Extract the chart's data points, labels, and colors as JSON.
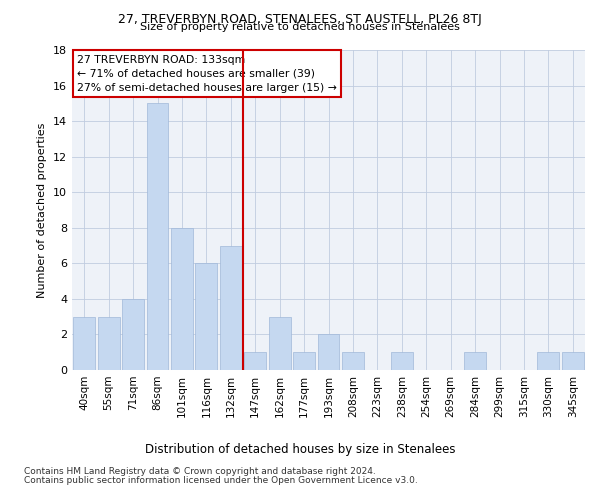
{
  "title": "27, TREVERBYN ROAD, STENALEES, ST AUSTELL, PL26 8TJ",
  "subtitle": "Size of property relative to detached houses in Stenalees",
  "xlabel": "Distribution of detached houses by size in Stenalees",
  "ylabel": "Number of detached properties",
  "categories": [
    "40sqm",
    "55sqm",
    "71sqm",
    "86sqm",
    "101sqm",
    "116sqm",
    "132sqm",
    "147sqm",
    "162sqm",
    "177sqm",
    "193sqm",
    "208sqm",
    "223sqm",
    "238sqm",
    "254sqm",
    "269sqm",
    "284sqm",
    "299sqm",
    "315sqm",
    "330sqm",
    "345sqm"
  ],
  "values": [
    3,
    3,
    4,
    15,
    8,
    6,
    7,
    1,
    3,
    1,
    2,
    1,
    0,
    1,
    0,
    0,
    1,
    0,
    0,
    1,
    1
  ],
  "bar_color": "#c5d8f0",
  "bar_edgecolor": "#a0b8d8",
  "vline_x": 6.5,
  "vline_color": "#cc0000",
  "annotation_text": "27 TREVERBYN ROAD: 133sqm\n← 71% of detached houses are smaller (39)\n27% of semi-detached houses are larger (15) →",
  "annotation_box_color": "#cc0000",
  "ylim": [
    0,
    18
  ],
  "yticks": [
    0,
    2,
    4,
    6,
    8,
    10,
    12,
    14,
    16,
    18
  ],
  "background_color": "#eef2f8",
  "footer_line1": "Contains HM Land Registry data © Crown copyright and database right 2024.",
  "footer_line2": "Contains public sector information licensed under the Open Government Licence v3.0."
}
